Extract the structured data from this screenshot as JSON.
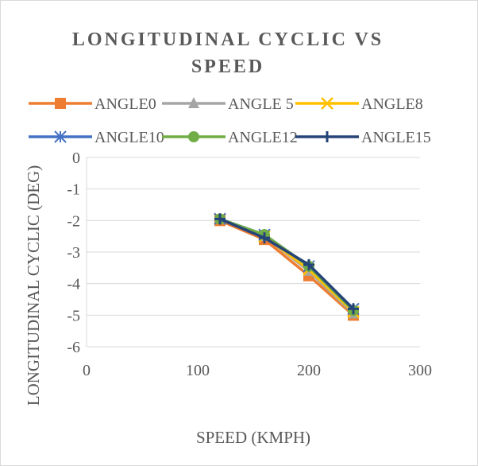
{
  "chart_data": {
    "type": "line",
    "title_lines": [
      "LONGITUDINAL CYCLIC VS",
      "SPEED"
    ],
    "xlabel": "SPEED (KMPH)",
    "ylabel": "LONGITUDINAL CYCLIC (DEG)",
    "xlim": [
      0,
      300
    ],
    "ylim": [
      -6,
      0
    ],
    "x_ticks": [
      0,
      100,
      200,
      300
    ],
    "y_ticks": [
      0,
      -1,
      -2,
      -3,
      -4,
      -5,
      -6
    ],
    "grid": true,
    "legend_position": "top",
    "x": [
      120,
      160,
      200,
      240
    ],
    "series": [
      {
        "name": "ANGLE0",
        "color": "#ED7D31",
        "marker": "square",
        "values": [
          -2.0,
          -2.6,
          -3.75,
          -5.0
        ]
      },
      {
        "name": "ANGLE 5",
        "color": "#A5A5A5",
        "marker": "triangle",
        "values": [
          -1.95,
          -2.5,
          -3.6,
          -4.95
        ]
      },
      {
        "name": "ANGLE8",
        "color": "#FFC000",
        "marker": "x",
        "values": [
          -1.95,
          -2.5,
          -3.55,
          -4.9
        ]
      },
      {
        "name": "ANGLE10",
        "color": "#4472C4",
        "marker": "star",
        "values": [
          -1.95,
          -2.45,
          -3.45,
          -4.8
        ]
      },
      {
        "name": "ANGLE12",
        "color": "#70AD47",
        "marker": "circle",
        "values": [
          -1.95,
          -2.45,
          -3.45,
          -4.85
        ]
      },
      {
        "name": "ANGLE15",
        "color": "#264478",
        "marker": "plus",
        "values": [
          -1.95,
          -2.55,
          -3.4,
          -4.8
        ]
      }
    ]
  }
}
